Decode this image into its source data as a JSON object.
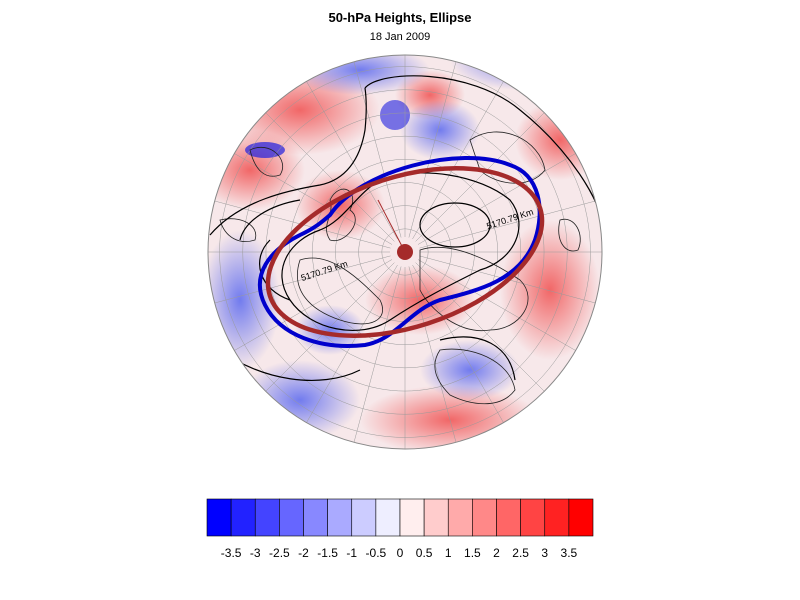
{
  "title": "50-hPa Heights, Ellipse",
  "subtitle": "18 Jan 2009",
  "contour_labels": [
    "5170.79 Km",
    "5170.79 Km"
  ],
  "colorbar": {
    "labels": [
      "-3.5",
      "-3",
      "-2.5",
      "-2",
      "-1.5",
      "-1",
      "-0.5",
      "0",
      "0.5",
      "1",
      "1.5",
      "2",
      "2.5",
      "3",
      "3.5"
    ],
    "low_color": "#0000ff",
    "mid_color": "#ffffff",
    "high_color": "#ff0000"
  },
  "colors": {
    "ellipse": "#a52a2a",
    "contour_highlight": "#0000cc",
    "contour": "#000000"
  }
}
